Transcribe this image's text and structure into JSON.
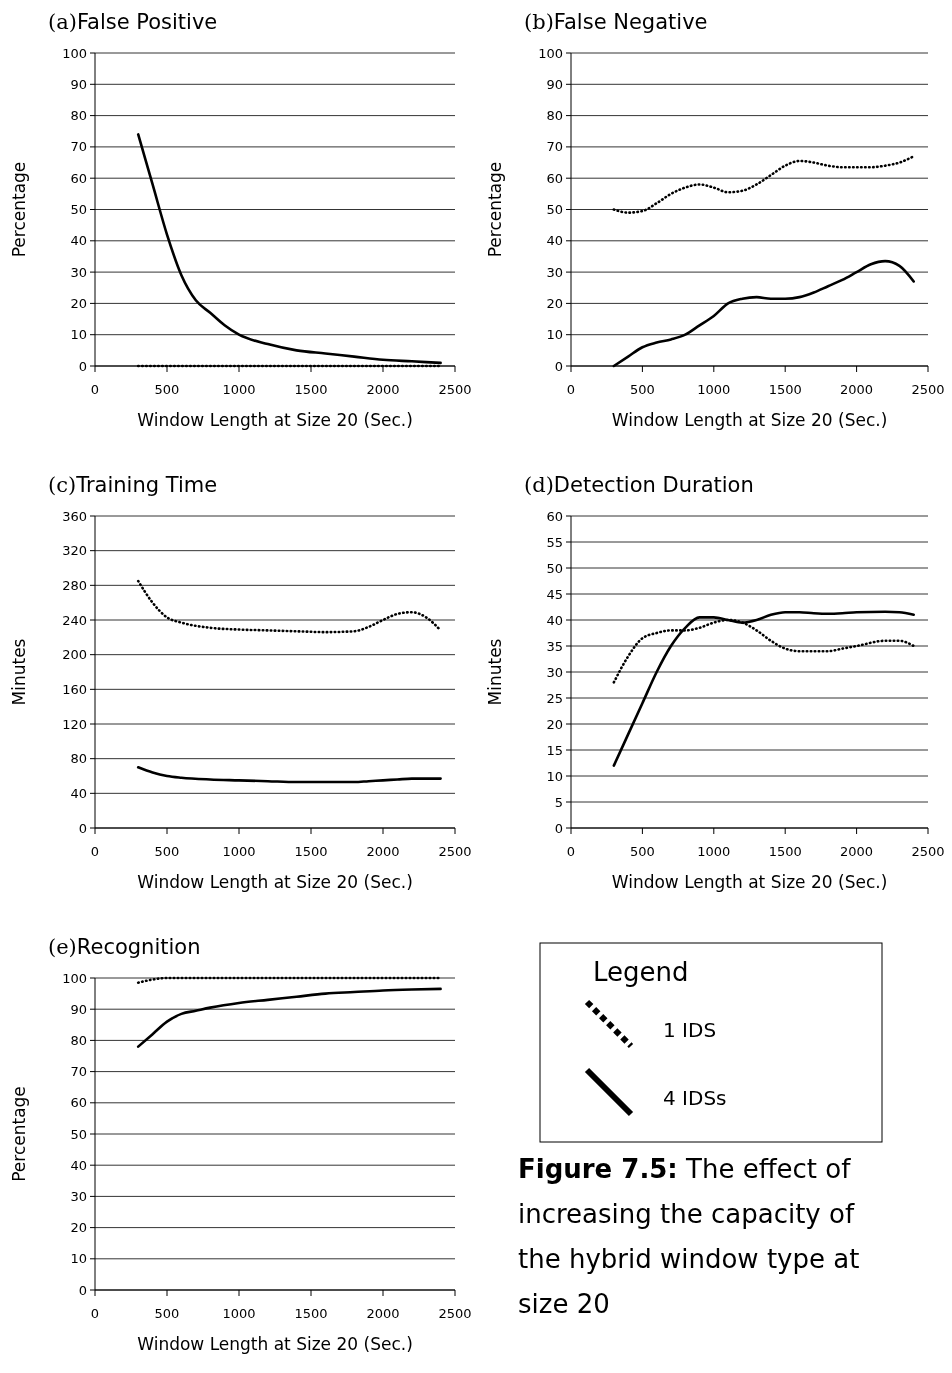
{
  "chart_data": [
    {
      "type": "line",
      "title": "(a)False Positive",
      "xlabel": "Window Length at Size 20 (Sec.)",
      "ylabel": "Percentage",
      "xlim": [
        0,
        2500
      ],
      "xticks": [
        0,
        500,
        1000,
        1500,
        2000,
        2500
      ],
      "ylim": [
        0,
        100
      ],
      "yticks": [
        0,
        10,
        20,
        30,
        40,
        50,
        60,
        70,
        80,
        90,
        100
      ],
      "grid": "y",
      "series": [
        {
          "color": "#000000",
          "line_style": "dotted",
          "x": [
            300,
            400,
            500,
            600,
            700,
            800,
            900,
            1000,
            1200,
            1400,
            1600,
            1800,
            2000,
            2200,
            2400
          ],
          "values": [
            0,
            0,
            0,
            0,
            0,
            0,
            0,
            0,
            0,
            0,
            0,
            0,
            0,
            0,
            0
          ]
        },
        {
          "color": "#000000",
          "line_style": "solid",
          "x": [
            300,
            400,
            500,
            600,
            700,
            800,
            900,
            1000,
            1200,
            1400,
            1600,
            1800,
            2000,
            2200,
            2400
          ],
          "values": [
            74,
            58,
            42,
            29,
            21,
            17,
            13,
            10,
            7,
            5,
            4,
            3,
            2,
            1.5,
            1
          ]
        }
      ]
    },
    {
      "type": "line",
      "title": "(b)False Negative",
      "xlabel": "Window Length at Size 20 (Sec.)",
      "ylabel": "Percentage",
      "xlim": [
        0,
        2500
      ],
      "xticks": [
        0,
        500,
        1000,
        1500,
        2000,
        2500
      ],
      "ylim": [
        0,
        100
      ],
      "yticks": [
        0,
        10,
        20,
        30,
        40,
        50,
        60,
        70,
        80,
        90,
        100
      ],
      "grid": "y",
      "series": [
        {
          "color": "#000000",
          "line_style": "dotted",
          "x": [
            300,
            400,
            500,
            600,
            700,
            800,
            900,
            1000,
            1100,
            1200,
            1300,
            1400,
            1500,
            1600,
            1700,
            1800,
            1900,
            2000,
            2100,
            2200,
            2300,
            2400
          ],
          "values": [
            50,
            49,
            49.5,
            52,
            55,
            57,
            58,
            57,
            55.5,
            56,
            58,
            61,
            64,
            65.5,
            65,
            64,
            63.5,
            63.5,
            63.5,
            64,
            65,
            67
          ]
        },
        {
          "color": "#000000",
          "line_style": "solid",
          "x": [
            300,
            400,
            500,
            600,
            700,
            800,
            900,
            1000,
            1100,
            1200,
            1300,
            1400,
            1500,
            1600,
            1700,
            1800,
            1900,
            2000,
            2100,
            2200,
            2300,
            2400
          ],
          "values": [
            0,
            3,
            6,
            7.5,
            8.5,
            10,
            13,
            16,
            20,
            21.5,
            22,
            21.5,
            21.5,
            22,
            23.5,
            25.5,
            27.5,
            30,
            32.5,
            33.5,
            32,
            27
          ]
        }
      ]
    },
    {
      "type": "line",
      "title": "(c)Training Time",
      "xlabel": "Window Length at Size 20 (Sec.)",
      "ylabel": "Minutes",
      "xlim": [
        0,
        2500
      ],
      "xticks": [
        0,
        500,
        1000,
        1500,
        2000,
        2500
      ],
      "ylim": [
        0,
        360
      ],
      "yticks": [
        0,
        40,
        80,
        120,
        160,
        200,
        240,
        280,
        320,
        360
      ],
      "grid": "y",
      "series": [
        {
          "color": "#000000",
          "line_style": "dotted",
          "x": [
            300,
            400,
            500,
            600,
            800,
            1000,
            1200,
            1400,
            1600,
            1800,
            1900,
            2000,
            2100,
            2200,
            2300,
            2400
          ],
          "values": [
            285,
            260,
            243,
            237,
            231,
            229,
            228,
            227,
            226,
            227,
            232,
            240,
            247,
            249,
            243,
            228
          ]
        },
        {
          "color": "#000000",
          "line_style": "solid",
          "x": [
            300,
            400,
            500,
            600,
            800,
            1000,
            1200,
            1400,
            1600,
            1800,
            1900,
            2000,
            2100,
            2200,
            2300,
            2400
          ],
          "values": [
            70,
            64,
            60,
            58,
            56,
            55,
            54,
            53,
            53,
            53,
            54,
            55,
            56,
            57,
            57,
            57
          ]
        }
      ]
    },
    {
      "type": "line",
      "title": "(d)Detection Duration",
      "xlabel": "Window Length at Size 20 (Sec.)",
      "ylabel": "Minutes",
      "xlim": [
        0,
        2500
      ],
      "xticks": [
        0,
        500,
        1000,
        1500,
        2000,
        2500
      ],
      "ylim": [
        0,
        60
      ],
      "yticks": [
        0,
        5,
        10,
        15,
        20,
        25,
        30,
        35,
        40,
        45,
        50,
        55,
        60
      ],
      "grid": "y",
      "series": [
        {
          "color": "#000000",
          "line_style": "dotted",
          "x": [
            300,
            400,
            500,
            600,
            700,
            800,
            900,
            1000,
            1100,
            1200,
            1300,
            1400,
            1500,
            1600,
            1700,
            1800,
            1900,
            2000,
            2200,
            2300,
            2400
          ],
          "values": [
            28,
            33,
            36.5,
            37.5,
            38,
            38,
            38.5,
            39.5,
            40,
            39.5,
            38,
            36,
            34.5,
            34,
            34,
            34,
            34.5,
            35,
            36,
            36,
            35
          ]
        },
        {
          "color": "#000000",
          "line_style": "solid",
          "x": [
            300,
            400,
            500,
            600,
            700,
            800,
            900,
            1000,
            1100,
            1200,
            1300,
            1400,
            1500,
            1600,
            1700,
            1800,
            1900,
            2000,
            2200,
            2300,
            2400
          ],
          "values": [
            12,
            18,
            24,
            30,
            35,
            38.5,
            40.5,
            40.5,
            40,
            39.5,
            40,
            41,
            41.5,
            41.5,
            41.3,
            41.2,
            41.3,
            41.5,
            41.6,
            41.5,
            41
          ]
        }
      ]
    },
    {
      "type": "line",
      "title": "(e)Recognition",
      "xlabel": "Window Length at Size 20 (Sec.)",
      "ylabel": "Percentage",
      "xlim": [
        0,
        2500
      ],
      "xticks": [
        0,
        500,
        1000,
        1500,
        2000,
        2500
      ],
      "ylim": [
        0,
        100
      ],
      "yticks": [
        0,
        10,
        20,
        30,
        40,
        50,
        60,
        70,
        80,
        90,
        100
      ],
      "grid": "y",
      "legend": "right",
      "legend_title": "Legend",
      "annotations": [
        "Figure 7.5: The effect of increasing the capacity of the hybrid window type at size 20"
      ],
      "series": [
        {
          "name": "1 IDS",
          "color": "#000000",
          "line_style": "dotted",
          "x": [
            300,
            400,
            500,
            600,
            700,
            800,
            1000,
            1200,
            1400,
            1600,
            1800,
            2000,
            2200,
            2400
          ],
          "values": [
            98.5,
            99.5,
            100,
            100,
            100,
            100,
            100,
            100,
            100,
            100,
            100,
            100,
            100,
            100
          ]
        },
        {
          "name": "4 IDSs",
          "color": "#000000",
          "line_style": "solid",
          "x": [
            300,
            400,
            500,
            600,
            700,
            800,
            1000,
            1200,
            1400,
            1600,
            1800,
            2000,
            2200,
            2400
          ],
          "values": [
            78,
            82,
            86,
            88.5,
            89.5,
            90.5,
            92,
            93,
            94,
            95,
            95.5,
            96,
            96.3,
            96.5
          ]
        }
      ]
    }
  ]
}
